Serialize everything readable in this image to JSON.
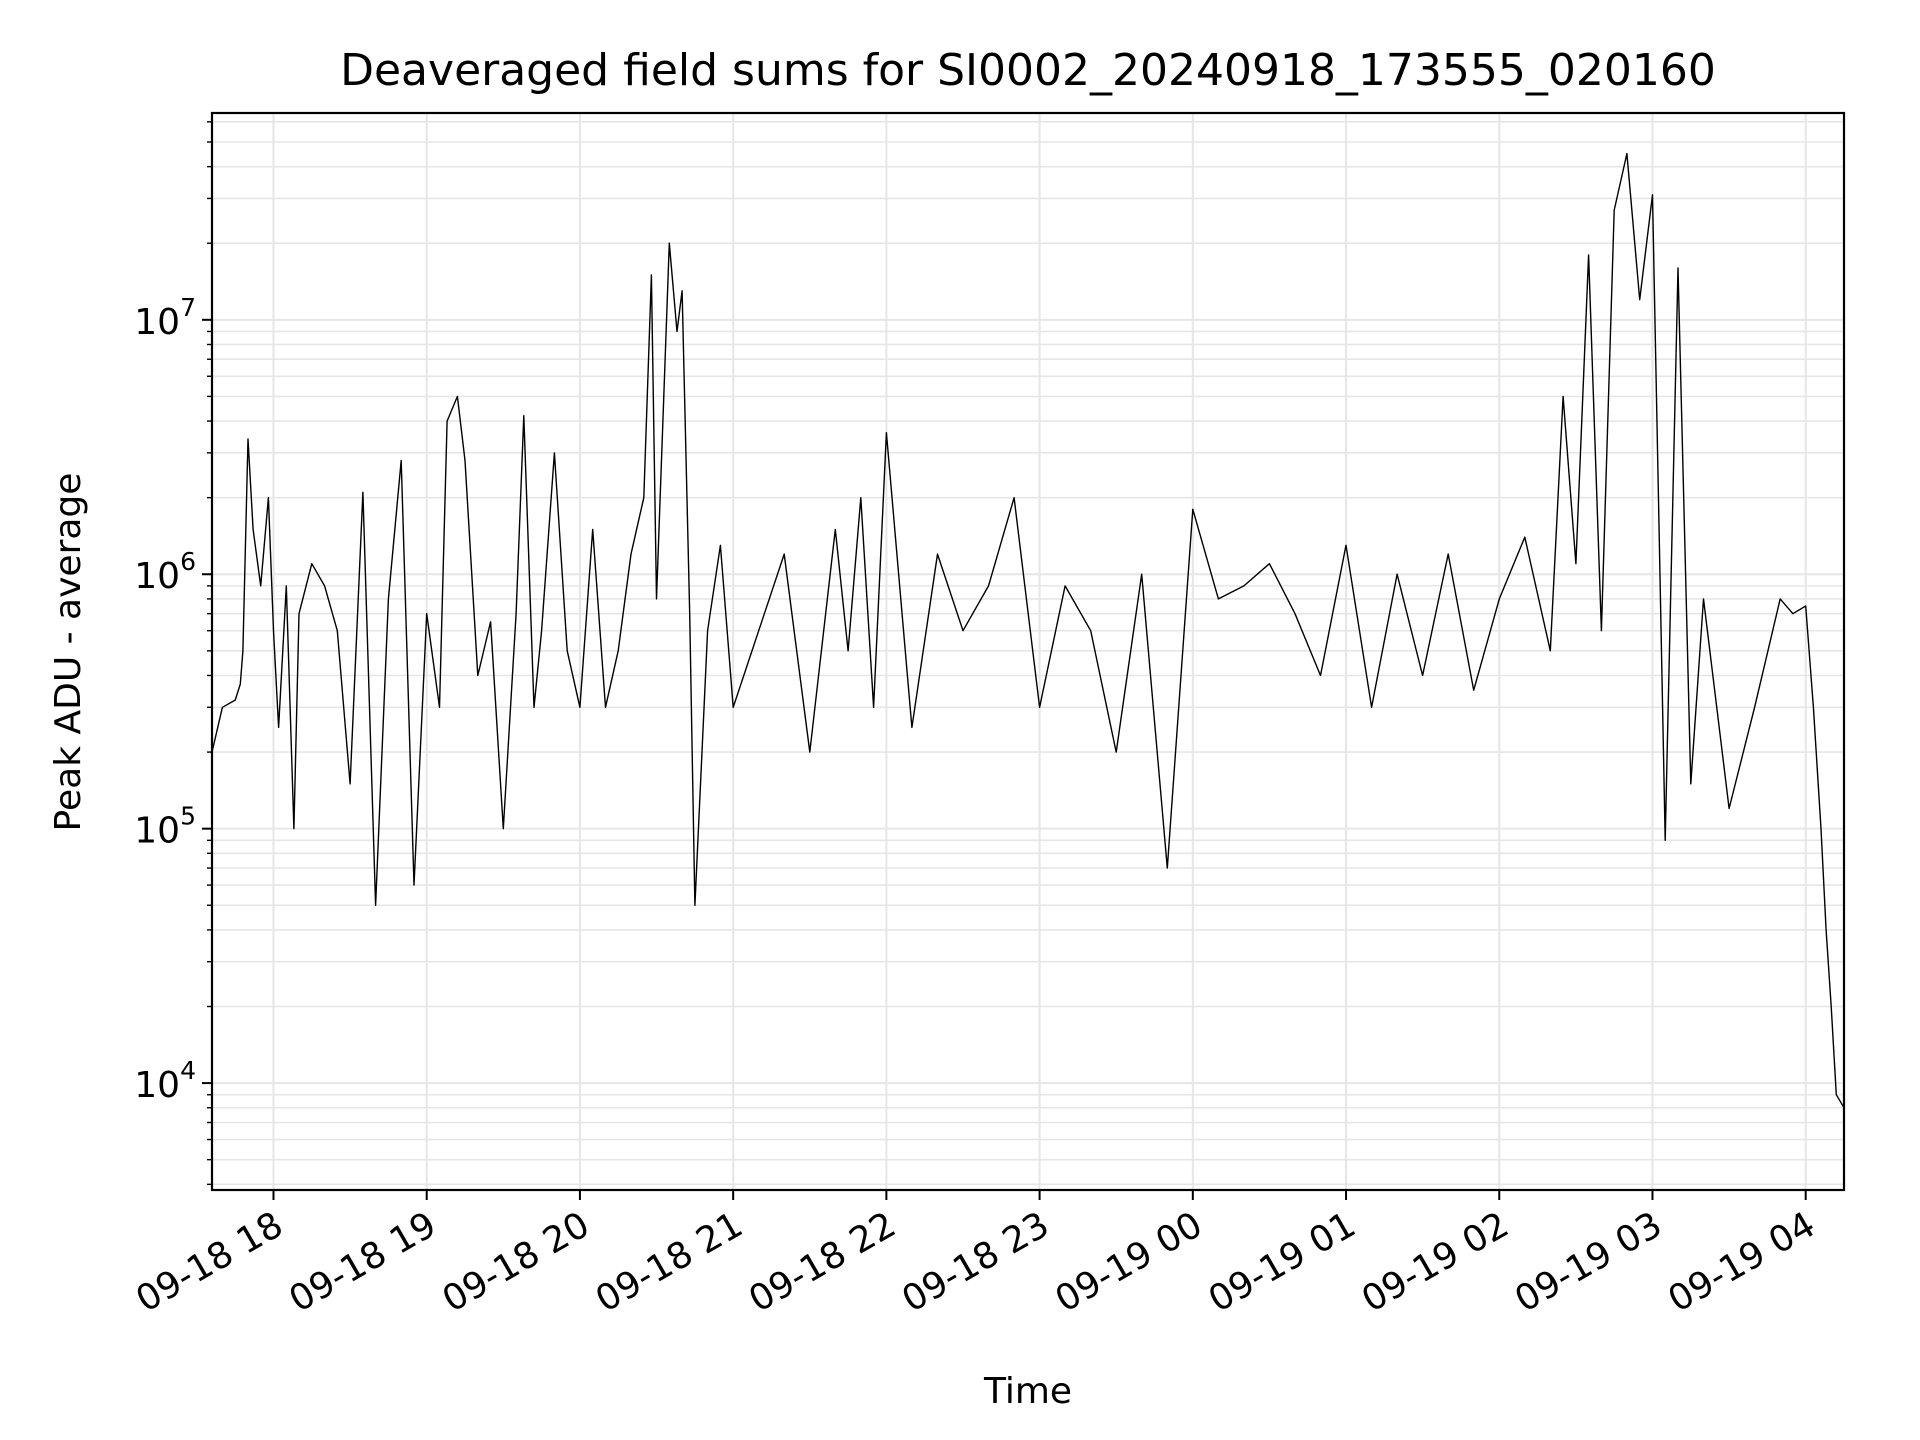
{
  "chart_data": {
    "type": "line",
    "title": "Deaveraged field sums for SI0002_20240918_173555_020160",
    "xlabel": "Time",
    "ylabel": "Peak ADU - average",
    "yscale": "log",
    "ylim": [
      3800,
      65000000
    ],
    "xlim": [
      "2024-09-18T17:35:55",
      "2024-09-19T04:15:00"
    ],
    "x_tick_labels": [
      "09-18 18",
      "09-18 19",
      "09-18 20",
      "09-18 21",
      "09-18 22",
      "09-18 23",
      "09-19 00",
      "09-19 01",
      "09-19 02",
      "09-19 03",
      "09-19 04"
    ],
    "x_tick_values": [
      "2024-09-18T18:00:00",
      "2024-09-18T19:00:00",
      "2024-09-18T20:00:00",
      "2024-09-18T21:00:00",
      "2024-09-18T22:00:00",
      "2024-09-18T23:00:00",
      "2024-09-19T00:00:00",
      "2024-09-19T01:00:00",
      "2024-09-19T02:00:00",
      "2024-09-19T03:00:00",
      "2024-09-19T04:00:00"
    ],
    "y_tick_labels": [
      {
        "base": "10",
        "exp": "4",
        "value": 10000
      },
      {
        "base": "10",
        "exp": "5",
        "value": 100000
      },
      {
        "base": "10",
        "exp": "6",
        "value": 1000000
      },
      {
        "base": "10",
        "exp": "7",
        "value": 10000000
      }
    ],
    "grid": true,
    "line_color": "#000000",
    "series": [
      {
        "x": [
          "2024-09-18T17:35:55",
          "2024-09-18T17:40:00",
          "2024-09-18T17:45:00",
          "2024-09-18T17:47:00",
          "2024-09-18T17:48:00",
          "2024-09-18T17:50:00",
          "2024-09-18T17:52:00",
          "2024-09-18T17:55:00",
          "2024-09-18T17:58:00",
          "2024-09-18T18:00:00",
          "2024-09-18T18:02:00",
          "2024-09-18T18:05:00",
          "2024-09-18T18:08:00",
          "2024-09-18T18:10:00",
          "2024-09-18T18:15:00",
          "2024-09-18T18:20:00",
          "2024-09-18T18:25:00",
          "2024-09-18T18:30:00",
          "2024-09-18T18:35:00",
          "2024-09-18T18:40:00",
          "2024-09-18T18:45:00",
          "2024-09-18T18:50:00",
          "2024-09-18T18:55:00",
          "2024-09-18T19:00:00",
          "2024-09-18T19:05:00",
          "2024-09-18T19:08:00",
          "2024-09-18T19:12:00",
          "2024-09-18T19:15:00",
          "2024-09-18T19:20:00",
          "2024-09-18T19:25:00",
          "2024-09-18T19:30:00",
          "2024-09-18T19:35:00",
          "2024-09-18T19:38:00",
          "2024-09-18T19:42:00",
          "2024-09-18T19:45:00",
          "2024-09-18T19:50:00",
          "2024-09-18T19:55:00",
          "2024-09-18T20:00:00",
          "2024-09-18T20:05:00",
          "2024-09-18T20:10:00",
          "2024-09-18T20:15:00",
          "2024-09-18T20:20:00",
          "2024-09-18T20:25:00",
          "2024-09-18T20:28:00",
          "2024-09-18T20:30:00",
          "2024-09-18T20:35:00",
          "2024-09-18T20:38:00",
          "2024-09-18T20:40:00",
          "2024-09-18T20:43:00",
          "2024-09-18T20:45:00",
          "2024-09-18T20:50:00",
          "2024-09-18T20:55:00",
          "2024-09-18T21:00:00",
          "2024-09-18T21:10:00",
          "2024-09-18T21:20:00",
          "2024-09-18T21:30:00",
          "2024-09-18T21:40:00",
          "2024-09-18T21:45:00",
          "2024-09-18T21:50:00",
          "2024-09-18T21:55:00",
          "2024-09-18T22:00:00",
          "2024-09-18T22:10:00",
          "2024-09-18T22:20:00",
          "2024-09-18T22:30:00",
          "2024-09-18T22:40:00",
          "2024-09-18T22:50:00",
          "2024-09-18T23:00:00",
          "2024-09-18T23:10:00",
          "2024-09-18T23:20:00",
          "2024-09-18T23:30:00",
          "2024-09-18T23:40:00",
          "2024-09-18T23:50:00",
          "2024-09-19T00:00:00",
          "2024-09-19T00:10:00",
          "2024-09-19T00:20:00",
          "2024-09-19T00:30:00",
          "2024-09-19T00:40:00",
          "2024-09-19T00:50:00",
          "2024-09-19T01:00:00",
          "2024-09-19T01:10:00",
          "2024-09-19T01:20:00",
          "2024-09-19T01:30:00",
          "2024-09-19T01:40:00",
          "2024-09-19T01:50:00",
          "2024-09-19T02:00:00",
          "2024-09-19T02:10:00",
          "2024-09-19T02:20:00",
          "2024-09-19T02:25:00",
          "2024-09-19T02:30:00",
          "2024-09-19T02:35:00",
          "2024-09-19T02:40:00",
          "2024-09-19T02:45:00",
          "2024-09-19T02:50:00",
          "2024-09-19T02:55:00",
          "2024-09-19T03:00:00",
          "2024-09-19T03:05:00",
          "2024-09-19T03:10:00",
          "2024-09-19T03:15:00",
          "2024-09-19T03:20:00",
          "2024-09-19T03:30:00",
          "2024-09-19T03:40:00",
          "2024-09-19T03:50:00",
          "2024-09-19T03:55:00",
          "2024-09-19T04:00:00",
          "2024-09-19T04:03:00",
          "2024-09-19T04:06:00",
          "2024-09-19T04:08:00",
          "2024-09-19T04:10:00",
          "2024-09-19T04:12:00",
          "2024-09-19T04:15:00"
        ],
        "y": [
          200000,
          300000,
          320000,
          370000,
          500000,
          3400000,
          1500000,
          900000,
          2000000,
          600000,
          250000,
          900000,
          100000,
          700000,
          1100000,
          900000,
          600000,
          150000,
          2100000,
          50000,
          800000,
          2800000,
          60000,
          700000,
          300000,
          4000000,
          5000000,
          2800000,
          400000,
          650000,
          100000,
          700000,
          4200000,
          300000,
          600000,
          3000000,
          500000,
          300000,
          1500000,
          300000,
          500000,
          1200000,
          2000000,
          15000000,
          800000,
          20000000,
          9000000,
          13000000,
          700000,
          50000,
          600000,
          1300000,
          300000,
          600000,
          1200000,
          200000,
          1500000,
          500000,
          2000000,
          300000,
          3600000,
          250000,
          1200000,
          600000,
          900000,
          2000000,
          300000,
          900000,
          600000,
          200000,
          1000000,
          70000,
          1800000,
          800000,
          900000,
          1100000,
          700000,
          400000,
          1300000,
          300000,
          1000000,
          400000,
          1200000,
          350000,
          800000,
          1400000,
          500000,
          5000000,
          1100000,
          18000000,
          600000,
          27000000,
          45000000,
          12000000,
          31000000,
          90000,
          16000000,
          150000,
          800000,
          120000,
          300000,
          800000,
          700000,
          750000,
          300000,
          100000,
          40000,
          20000,
          9000,
          8000
        ]
      }
    ]
  }
}
